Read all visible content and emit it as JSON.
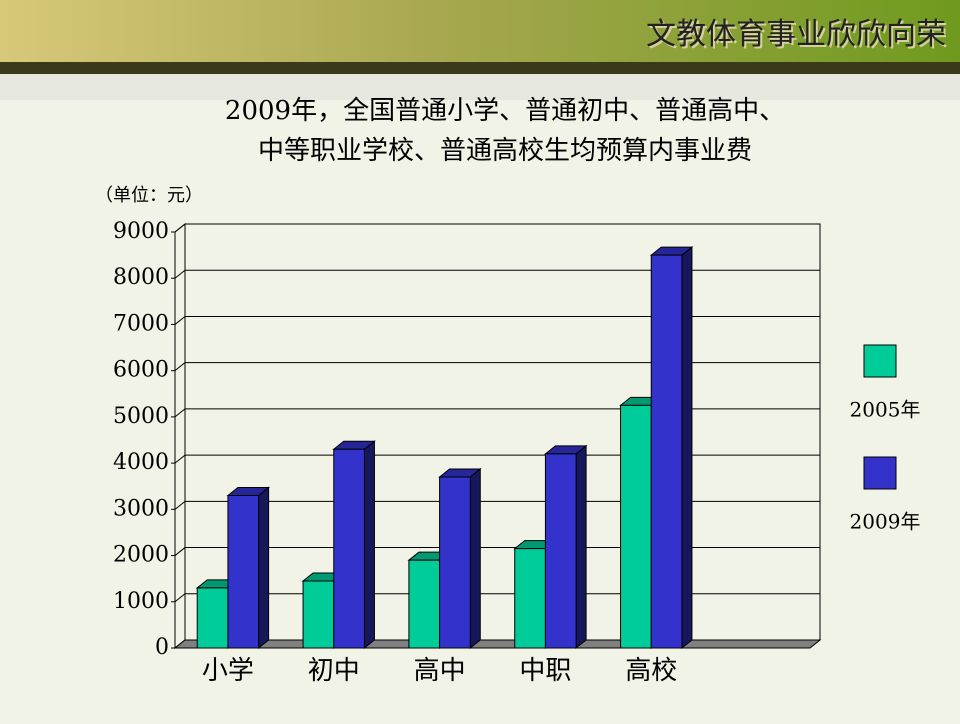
{
  "header": {
    "title": "文教体育事业欣欣向荣"
  },
  "chart_data": {
    "type": "bar3d",
    "title": [
      "2009年，全国普通小学、普通初中、普通高中、",
      "中等职业学校、普通高校生均预算内事业费"
    ],
    "subtitle": "（单位：元）",
    "categories": [
      "小学",
      "初中",
      "高中",
      "中职",
      "高校",
      null
    ],
    "series": [
      {
        "name": "2005年",
        "color": "#00cc99",
        "values": [
          1300,
          1450,
          1900,
          2150,
          5250,
          null
        ]
      },
      {
        "name": "2009年",
        "color": "#3333cc",
        "values": [
          3300,
          4300,
          3700,
          4200,
          8500,
          null
        ]
      }
    ],
    "ylim": [
      0,
      9000
    ],
    "yticks": [
      0,
      1000,
      2000,
      3000,
      4000,
      5000,
      6000,
      7000,
      8000,
      9000
    ],
    "grid": true,
    "legend": "right"
  }
}
